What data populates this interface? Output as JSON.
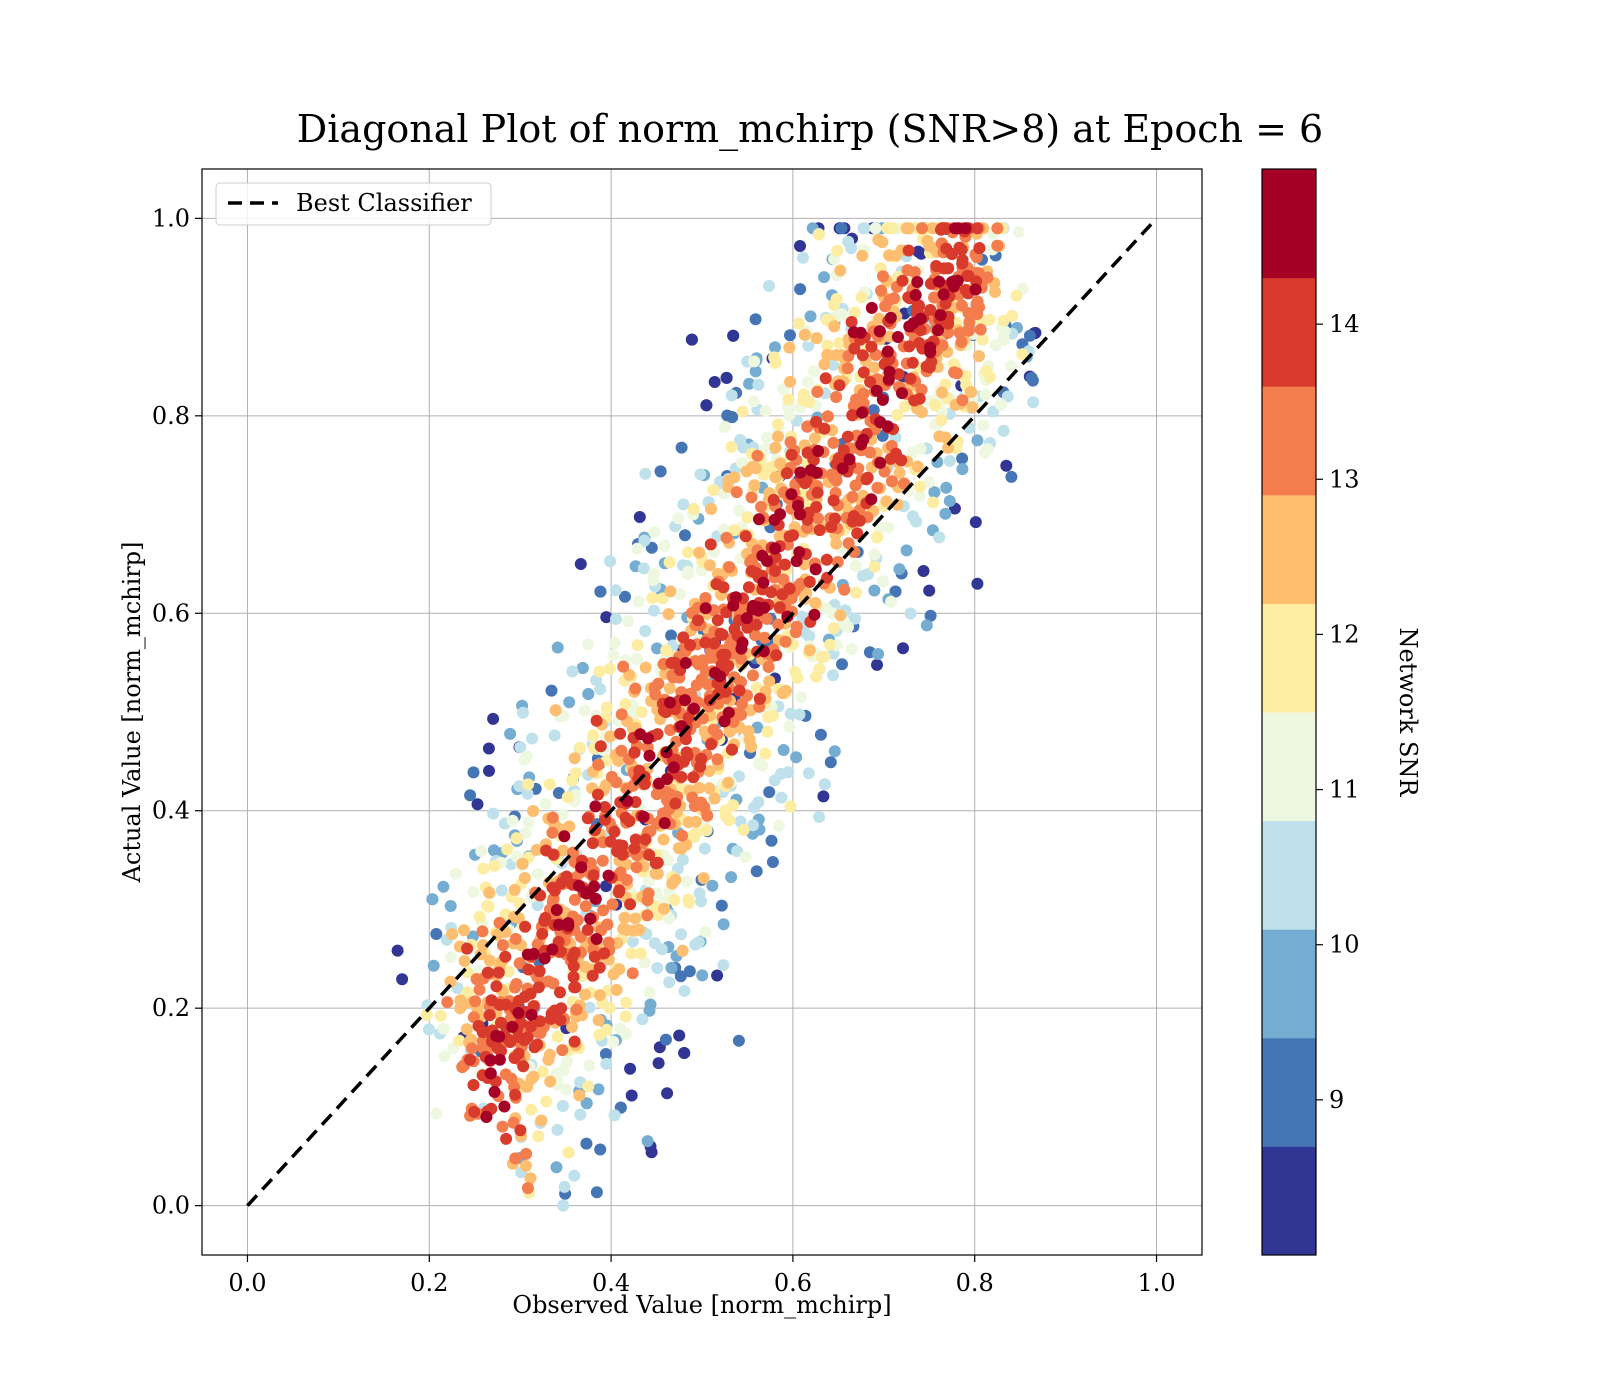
{
  "chart_data": {
    "type": "scatter",
    "title": "Diagonal Plot of norm_mchirp (SNR>8) at Epoch = 6",
    "xlabel": "Observed Value [norm_mchirp]",
    "ylabel": "Actual Value [norm_mchirp]",
    "xlim": [
      -0.05,
      1.05
    ],
    "ylim": [
      -0.05,
      1.05
    ],
    "xticks": [
      "0.0",
      "0.2",
      "0.4",
      "0.6",
      "0.8",
      "1.0"
    ],
    "yticks": [
      "0.0",
      "0.2",
      "0.4",
      "0.6",
      "0.8",
      "1.0"
    ],
    "grid": true,
    "legend": {
      "placement": "upper-left",
      "entries": [
        "Best Classifier"
      ]
    },
    "reference_line": {
      "name": "Best Classifier",
      "style": "dashed",
      "color": "#000000",
      "x": [
        0,
        1
      ],
      "y": [
        0,
        1
      ]
    },
    "colorbar": {
      "label": "Network SNR",
      "range": [
        8,
        15
      ],
      "ticks": [
        "9",
        "10",
        "11",
        "12",
        "13",
        "14"
      ],
      "colors": [
        "#313695",
        "#4575b4",
        "#74add1",
        "#abd9e9",
        "#e0f3f8",
        "#ffffbf",
        "#fee090",
        "#fdae61",
        "#f46d43",
        "#d73027",
        "#a50026"
      ]
    },
    "point_cloud": {
      "description_free": true,
      "count": 2600,
      "bounds_x": [
        0.16,
        0.87
      ],
      "bounds_y": [
        0.0,
        0.99
      ]
    }
  }
}
